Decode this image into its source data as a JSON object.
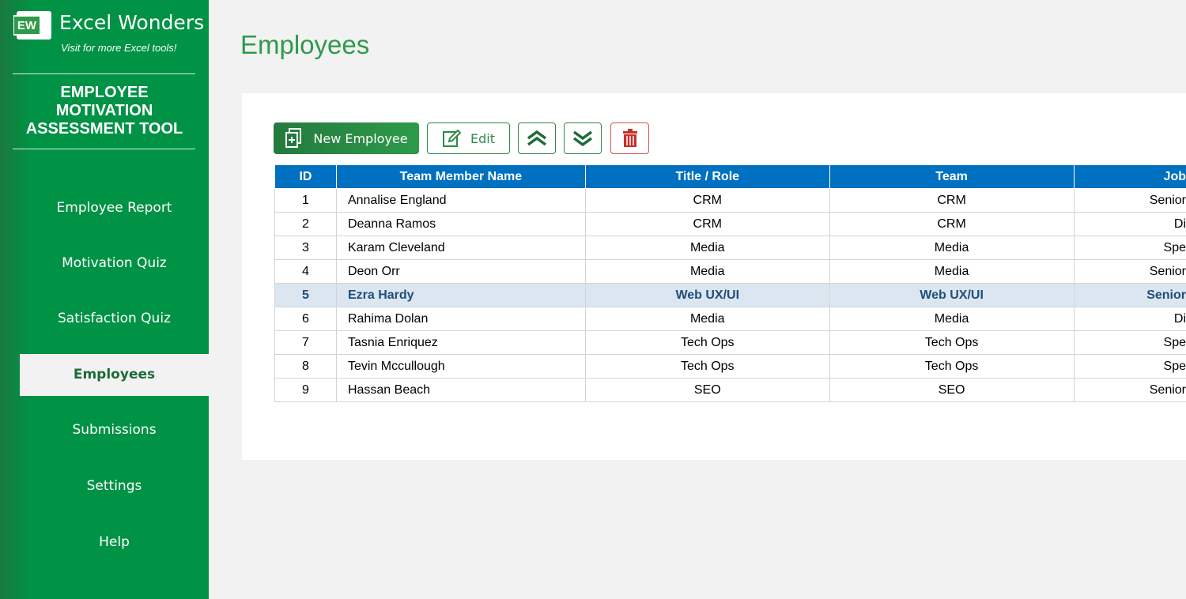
{
  "sidebar": {
    "brand": "Excel Wonders",
    "tagline": "Visit for more Excel tools!",
    "logo": "EW",
    "app_title": [
      "EMPLOYEE",
      "MOTIVATION",
      "ASSESSMENT TOOL"
    ],
    "nav": [
      "Employee Report",
      "Motivation Quiz",
      "Satisfaction Quiz",
      "Employees",
      "Submissions",
      "Settings",
      "Help"
    ],
    "active_nav": "Employees"
  },
  "header": {
    "title": "Employees"
  },
  "toolbar": {
    "new": "New Employee",
    "edit": "Edit"
  },
  "table": {
    "columns": [
      "ID",
      "Team Member Name",
      "Title / Role",
      "Team",
      "Job"
    ],
    "rows": [
      [
        1,
        "Annalise England",
        "CRM",
        "CRM",
        "Senior"
      ],
      [
        2,
        "Deanna Ramos",
        "CRM",
        "CRM",
        "Di"
      ],
      [
        3,
        "Karam Cleveland",
        "Media",
        "Media",
        "Spe"
      ],
      [
        4,
        "Deon Orr",
        "Media",
        "Media",
        "Senior"
      ],
      [
        5,
        "Ezra Hardy",
        "Web UX/UI",
        "Web UX/UI",
        "Senior"
      ],
      [
        6,
        "Rahima Dolan",
        "Media",
        "Media",
        "Di"
      ],
      [
        7,
        "Tasnia Enriquez",
        "Tech Ops",
        "Tech Ops",
        "Spe"
      ],
      [
        8,
        "Tevin Mccullough",
        "Tech Ops",
        "Tech Ops",
        "Spe"
      ],
      [
        9,
        "Hassan Beach",
        "SEO",
        "SEO",
        "Senior"
      ]
    ]
  }
}
